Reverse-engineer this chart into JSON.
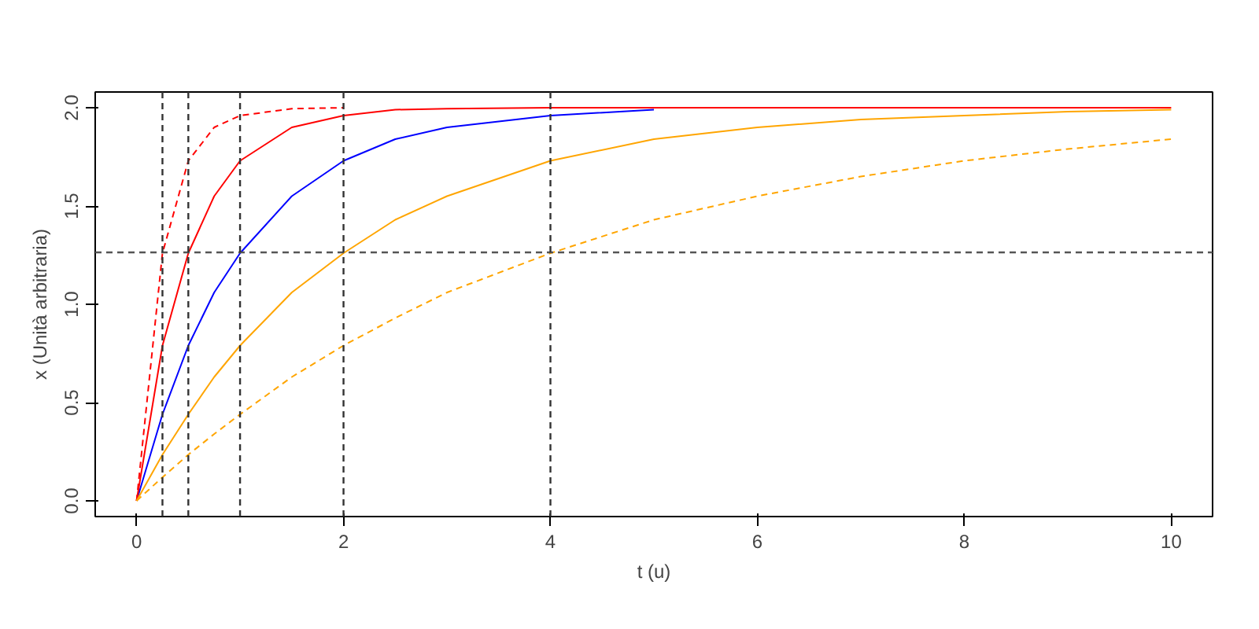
{
  "chart_data": {
    "type": "line",
    "xlabel": "t (u)",
    "ylabel": "x (Unità arbitraria)",
    "x": [
      0,
      0.25,
      0.5,
      0.75,
      1,
      1.5,
      2,
      2.5,
      3,
      4,
      5,
      6,
      7,
      8,
      9,
      10
    ],
    "series": [
      {
        "color": "#0000ff",
        "line_style": "solid",
        "values": [
          0,
          0.44,
          0.79,
          1.06,
          1.26,
          1.55,
          1.73,
          1.84,
          1.9,
          1.96,
          1.99,
          null,
          null,
          null,
          null,
          null
        ]
      },
      {
        "color": "#ff0000",
        "line_style": "solid",
        "values": [
          0,
          0.79,
          1.26,
          1.55,
          1.73,
          1.9,
          1.96,
          1.99,
          1.995,
          2.0,
          2.0,
          2.0,
          2.0,
          2.0,
          2.0,
          2.0
        ]
      },
      {
        "color": "#ff0000",
        "line_style": "dashed",
        "values": [
          0,
          1.26,
          1.73,
          1.9,
          1.96,
          1.995,
          2.0,
          null,
          null,
          null,
          null,
          null,
          null,
          null,
          null,
          null
        ]
      },
      {
        "color": "#ffa500",
        "line_style": "solid",
        "values": [
          0,
          0.235,
          0.44,
          0.63,
          0.79,
          1.06,
          1.26,
          1.43,
          1.55,
          1.73,
          1.84,
          1.9,
          1.94,
          1.96,
          1.98,
          1.99
        ]
      },
      {
        "color": "#ffa500",
        "line_style": "dashed",
        "values": [
          0,
          0.12,
          0.235,
          0.34,
          0.44,
          0.63,
          0.79,
          0.93,
          1.06,
          1.26,
          1.43,
          1.55,
          1.65,
          1.73,
          1.79,
          1.84
        ]
      }
    ],
    "xlim": [
      -0.4,
      10.4
    ],
    "ylim": [
      -0.08,
      2.08
    ],
    "xticks": [
      0,
      2,
      4,
      6,
      8,
      10
    ],
    "yticks": [
      {
        "value": 0,
        "label": "0.0"
      },
      {
        "value": 0.5,
        "label": "0.5"
      },
      {
        "value": 1,
        "label": "1.0"
      },
      {
        "value": 1.5,
        "label": "1.5"
      },
      {
        "value": 2,
        "label": "2.0"
      }
    ],
    "ref_lines": [
      {
        "axis": "y",
        "value": 1.264,
        "color": "#555555",
        "line_style": "dashed"
      },
      {
        "axis": "x",
        "value": 0.25,
        "color": "#333333",
        "line_style": "dashed"
      },
      {
        "axis": "x",
        "value": 0.5,
        "color": "#333333",
        "line_style": "dashed"
      },
      {
        "axis": "x",
        "value": 1,
        "color": "#333333",
        "line_style": "dashed"
      },
      {
        "axis": "x",
        "value": 2,
        "color": "#333333",
        "line_style": "dashed"
      },
      {
        "axis": "x",
        "value": 4,
        "color": "#333333",
        "line_style": "dashed"
      }
    ],
    "grid": false
  }
}
